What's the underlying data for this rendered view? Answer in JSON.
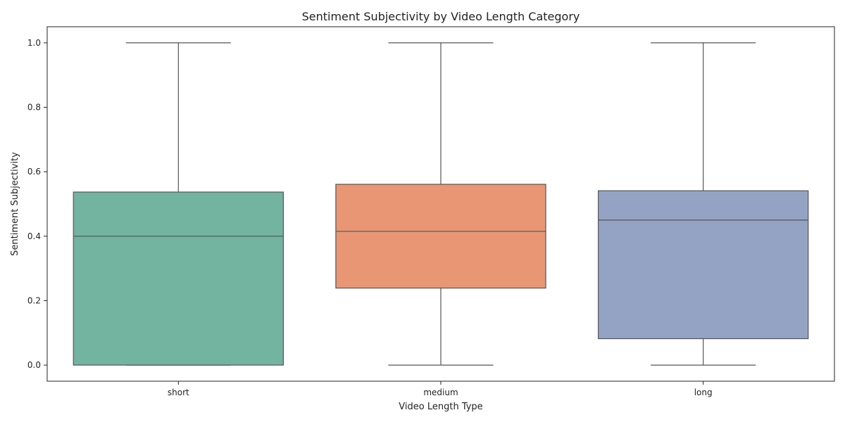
{
  "chart_data": {
    "type": "box",
    "title": "Sentiment Subjectivity by Video Length Category",
    "xlabel": "Video Length Type",
    "ylabel": "Sentiment Subjectivity",
    "ylim": [
      -0.05,
      1.05
    ],
    "yticks": [
      "0.0",
      "0.2",
      "0.4",
      "0.6",
      "0.8",
      "1.0"
    ],
    "grid": false,
    "categories": [
      "short",
      "medium",
      "long"
    ],
    "boxes": [
      {
        "category": "short",
        "min": 0.0,
        "q1": 0.0,
        "median": 0.4,
        "q3": 0.537,
        "max": 1.0,
        "color": "#72b4a0"
      },
      {
        "category": "medium",
        "min": 0.0,
        "q1": 0.239,
        "median": 0.415,
        "q3": 0.561,
        "max": 1.0,
        "color": "#e89673"
      },
      {
        "category": "long",
        "min": 0.0,
        "q1": 0.082,
        "median": 0.45,
        "q3": 0.541,
        "max": 1.0,
        "color": "#94a3c3"
      }
    ],
    "line_color": "#555555"
  }
}
